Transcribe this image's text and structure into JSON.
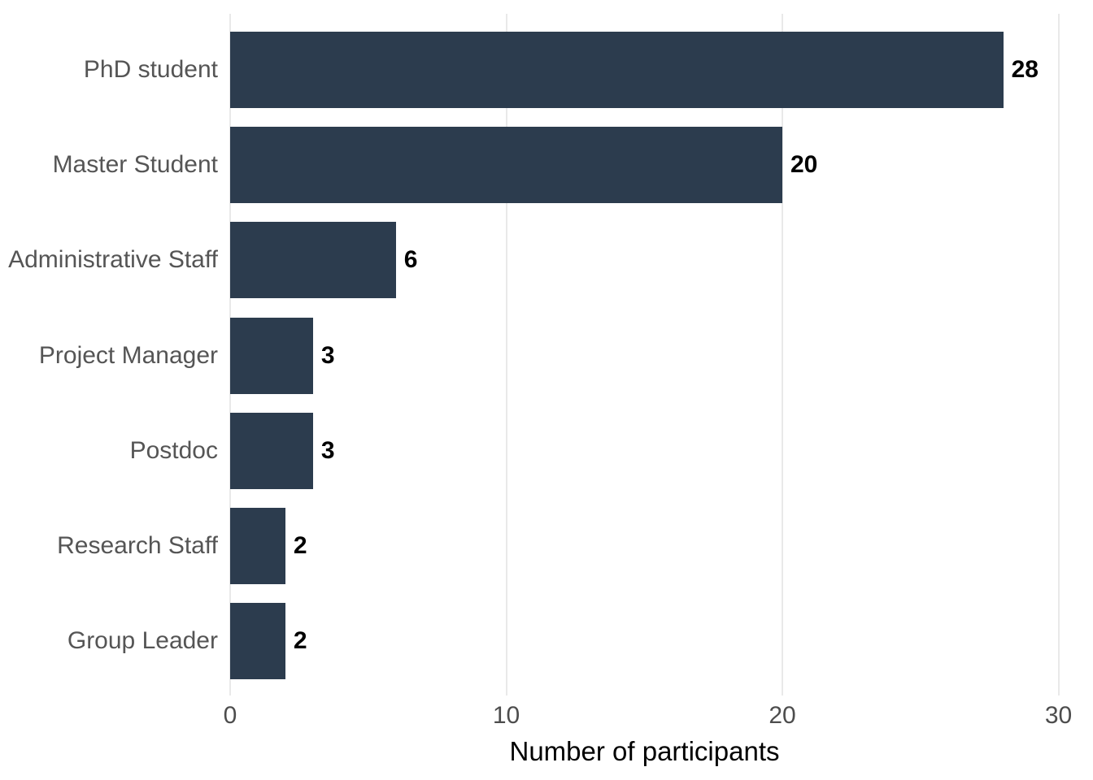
{
  "chart_data": {
    "type": "bar",
    "orientation": "horizontal",
    "title": "",
    "xlabel": "Number of participants",
    "ylabel": "",
    "categories": [
      "PhD student",
      "Master Student",
      "Administrative Staff",
      "Project Manager",
      "Postdoc",
      "Research Staff",
      "Group Leader"
    ],
    "values": [
      28,
      20,
      6,
      3,
      3,
      2,
      2
    ],
    "xlim": [
      0,
      30
    ],
    "xticks": [
      0,
      10,
      20,
      30
    ],
    "grid": "vertical-major-only",
    "legend": "none",
    "colors": {
      "bar": "#2C3C4E",
      "gridline": "#E9E9E9",
      "category_label": "#555555",
      "tick_label": "#4D4D4D",
      "value_label": "#000000",
      "axis_title": "#000000",
      "background": "#FFFFFF"
    }
  }
}
